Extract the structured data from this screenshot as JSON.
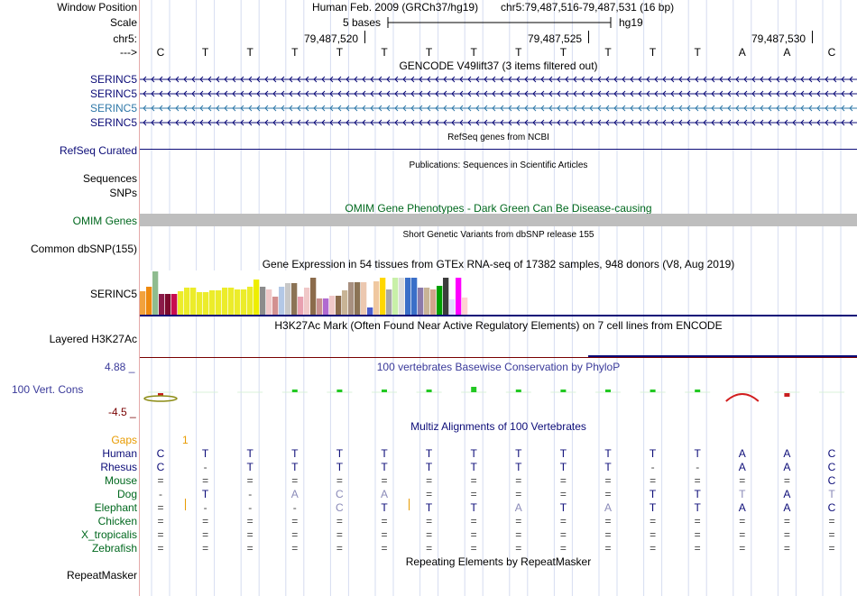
{
  "header": {
    "window_position_label": "Window Position",
    "assembly": "Human Feb. 2009 (GRCh37/hg19)",
    "position": "chr5:79,487,516-79,487,531 (16 bp)",
    "scale_label": "Scale",
    "scale_text": "5 bases",
    "scale_db": "hg19",
    "chrom_label": "chr5:",
    "coord_ticks": [
      "79,487,520",
      "79,487,525",
      "79,487,530"
    ],
    "strand_label": "--->",
    "bases": [
      "C",
      "T",
      "T",
      "T",
      "T",
      "T",
      "T",
      "T",
      "T",
      "T",
      "T",
      "T",
      "T",
      "A",
      "A",
      "C"
    ]
  },
  "gencode": {
    "title": "GENCODE V49lift37 (3 items filtered out)",
    "items": [
      {
        "label": "SERINC5",
        "color": "#0c0c78"
      },
      {
        "label": "SERINC5",
        "color": "#0c0c78"
      },
      {
        "label": "SERINC5",
        "color": "#2f78a8"
      },
      {
        "label": "SERINC5",
        "color": "#0c0c78"
      }
    ]
  },
  "refseq": {
    "label": "RefSeq Curated",
    "title": "RefSeq genes from NCBI",
    "color": "#0c0c78"
  },
  "publications": {
    "title": "Publications: Sequences in Scientific Articles",
    "label1": "Sequences",
    "label2": "SNPs"
  },
  "omim": {
    "title": "OMIM Gene Phenotypes - Dark Green Can Be Disease-causing",
    "label": "OMIM Genes",
    "color": "#00681e",
    "bar_color": "#bebebe"
  },
  "dbsnp": {
    "title": "Short Genetic Variants from dbSNP release 155",
    "label": "Common dbSNP(155)"
  },
  "gtex": {
    "title": "Gene Expression in 54 tissues from GTEx RNA-seq of 17382 samples, 948 donors (V8, Aug 2019)",
    "label": "SERINC5",
    "chart_data": {
      "type": "bar",
      "title": "Gene Expression in 54 tissues from GTEx RNA-seq of 17382 samples, 948 donors (V8, Aug 2019)",
      "values": [
        26,
        31,
        48,
        23,
        23,
        23,
        26,
        30,
        30,
        25,
        25,
        27,
        27,
        30,
        30,
        28,
        28,
        31,
        39,
        31,
        28,
        20,
        31,
        35,
        35,
        20,
        30,
        41,
        18,
        18,
        21,
        21,
        27,
        36,
        36,
        36,
        8,
        37,
        41,
        28,
        41,
        41,
        41,
        41,
        30,
        30,
        28,
        32,
        41,
        17,
        41,
        19,
        0,
        0
      ],
      "colors": [
        "#f2a23d",
        "#ee8a0f",
        "#8fbc8f",
        "#8b1a49",
        "#7c0a2e",
        "#c80c4f",
        "#ecec2a",
        "#ecec2a",
        "#ecec2a",
        "#ecec2a",
        "#ecec2a",
        "#ecec2a",
        "#ecec2a",
        "#ecec2a",
        "#ecec2a",
        "#ecec2a",
        "#ecec2a",
        "#ecec2a",
        "#eeee00",
        "#8c8c8c",
        "#f0c8c8",
        "#d29090",
        "#b3c8e6",
        "#c8c8c8",
        "#8b7355",
        "#e8a0b0",
        "#f0c8c8",
        "#8b6b4b",
        "#c89090",
        "#b06ad0",
        "#f0c8c8",
        "#8b6b4b",
        "#c8b496",
        "#a89080",
        "#8b7355",
        "#ecc8b0",
        "#4b5dcd",
        "#f0c8a0",
        "#ffd700",
        "#a8a8a8",
        "#c8f0a8",
        "#dcdcdc",
        "#3a6fc8",
        "#3a6fc8",
        "#8b7aaa",
        "#c8b496",
        "#d2a48c",
        "#00a000",
        "#3c3c3c",
        "#e0e0ff",
        "#ff00ff",
        "#ffd2d2",
        "#fff",
        "#fff"
      ],
      "ylim": [
        0,
        48
      ]
    }
  },
  "h3k27ac": {
    "title": "H3K27Ac Mark (Often Found Near Active Regulatory Elements) on 7 cell lines from ENCODE",
    "label": "Layered H3K27Ac"
  },
  "conservation": {
    "title": "100 vertebrates Basewise Conservation by PhyloP",
    "label": "100 Vert. Cons",
    "max_label": "4.88 _",
    "min_label": "-4.5 _",
    "chart_data": {
      "type": "bar",
      "title": "100 vertebrates Basewise Conservation by PhyloP",
      "values": [
        -0.5,
        0,
        0,
        0.5,
        0.3,
        0.3,
        0.6,
        1.2,
        0.2,
        0.2,
        0.3,
        0.2,
        0.5,
        0,
        -0.8,
        0
      ],
      "ylim": [
        -4.5,
        4.88
      ]
    }
  },
  "multiz": {
    "title": "Multiz Alignments of 100 Vertebrates",
    "gaps_label": "Gaps",
    "gaps_value": "1",
    "species": [
      {
        "name": "Human",
        "color": "#0c0c78",
        "seq": [
          "C",
          "T",
          "T",
          "T",
          "T",
          "T",
          "T",
          "T",
          "T",
          "T",
          "T",
          "T",
          "T",
          "A",
          "A",
          "C"
        ]
      },
      {
        "name": "Rhesus",
        "color": "#0c0c78",
        "seq": [
          "C",
          "-",
          "T",
          "T",
          "T",
          "T",
          "T",
          "T",
          "T",
          "T",
          "T",
          "-",
          "-",
          "A",
          "A",
          "C"
        ]
      },
      {
        "name": "Mouse",
        "color": "#00681e",
        "seq": [
          "=",
          "=",
          "=",
          "=",
          "=",
          "=",
          "=",
          "=",
          "=",
          "=",
          "=",
          "=",
          "=",
          "=",
          "=",
          "C"
        ]
      },
      {
        "name": "Dog",
        "color": "#00681e",
        "seq": [
          "-",
          "T",
          "-",
          "A",
          "C",
          "A",
          "=",
          "=",
          "=",
          "=",
          "=",
          "T",
          "T",
          "T",
          "A",
          "T"
        ]
      },
      {
        "name": "Elephant",
        "color": "#00681e",
        "seq": [
          "=",
          "-",
          "-",
          "-",
          "C",
          "T",
          "T",
          "T",
          "A",
          "T",
          "A",
          "T",
          "T",
          "A",
          "A",
          "C"
        ]
      },
      {
        "name": "Chicken",
        "color": "#00681e",
        "seq": [
          "=",
          "=",
          "=",
          "=",
          "=",
          "=",
          "=",
          "=",
          "=",
          "=",
          "=",
          "=",
          "=",
          "=",
          "=",
          "="
        ]
      },
      {
        "name": "X_tropicalis",
        "color": "#00681e",
        "seq": [
          "=",
          "=",
          "=",
          "=",
          "=",
          "=",
          "=",
          "=",
          "=",
          "=",
          "=",
          "=",
          "=",
          "=",
          "=",
          "="
        ]
      },
      {
        "name": "Zebrafish",
        "color": "#00681e",
        "seq": [
          "=",
          "=",
          "=",
          "=",
          "=",
          "=",
          "=",
          "=",
          "=",
          "=",
          "=",
          "=",
          "=",
          "=",
          "=",
          "="
        ]
      }
    ]
  },
  "repeatmasker": {
    "title": "Repeating Elements by RepeatMasker",
    "label": "RepeatMasker"
  },
  "colors": {
    "navy": "#0c0c78",
    "green": "#00681e",
    "orange": "#e89b00",
    "maroon": "#780000",
    "grid": "#c4cdeb",
    "conservation_title": "#3a3a9a"
  }
}
